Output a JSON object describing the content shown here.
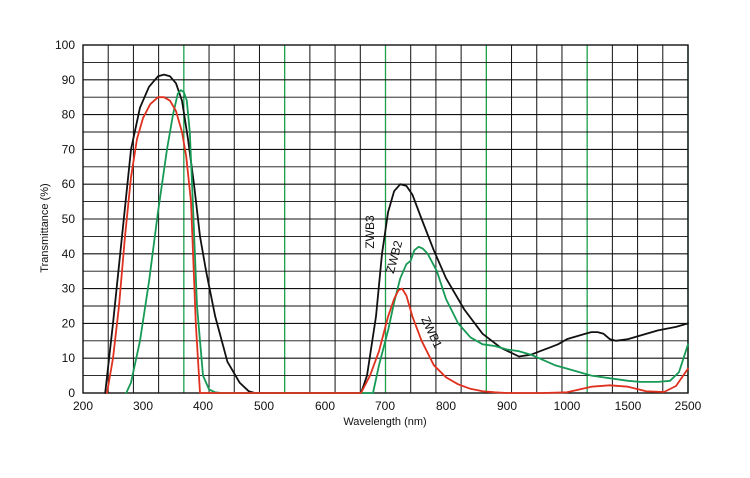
{
  "chart_data": {
    "type": "line",
    "title": "",
    "xlabel": "Wavelength (nm)",
    "ylabel": "Transmittance (%)",
    "ylim": [
      0,
      100
    ],
    "grid": true,
    "x_ticks": [
      "200",
      "300",
      "400",
      "500",
      "600",
      "700",
      "800",
      "900",
      "1000",
      "1500",
      "2500"
    ],
    "y_ticks": [
      "0",
      "10",
      "20",
      "30",
      "40",
      "50",
      "60",
      "70",
      "80",
      "90",
      "100"
    ],
    "x_axis_note": "piecewise scale: 200–900 nm linear, 900–1000 nm, 1000–1500 nm and 1500–2500 nm compressed segments",
    "colors": {
      "grid_black": "#111111",
      "grid_green": "#1aa14a",
      "ZWB3": "#111111",
      "ZWB2": "#169a55",
      "ZWB1": "#e0301e"
    },
    "series": [
      {
        "name": "ZWB3",
        "color": "#111111",
        "x": [
          237,
          250,
          265,
          280,
          295,
          310,
          325,
          335,
          345,
          355,
          365,
          375,
          385,
          395,
          405,
          420,
          440,
          460,
          475,
          485,
          490,
          660,
          670,
          685,
          695,
          705,
          715,
          725,
          735,
          745,
          760,
          780,
          800,
          830,
          860,
          890,
          920,
          940,
          955,
          970,
          985,
          1000,
          1150,
          1200,
          1250,
          1300,
          1350,
          1400,
          1500,
          1700,
          2000,
          2300,
          2500
        ],
        "y": [
          0,
          20,
          45,
          70,
          82,
          88,
          91,
          91.5,
          91,
          89,
          84,
          73,
          60,
          45,
          35,
          22,
          9,
          3,
          0.5,
          0,
          0,
          0,
          5,
          22,
          40,
          52,
          58,
          60,
          59.5,
          57,
          50,
          41,
          33,
          24,
          17,
          13,
          10.5,
          11,
          12,
          13,
          14,
          15.5,
          17,
          17.5,
          17.5,
          17,
          15.5,
          15,
          15.5,
          16.5,
          18,
          19,
          20
        ]
      },
      {
        "name": "ZWB2",
        "color": "#169a55",
        "x": [
          272,
          280,
          295,
          310,
          325,
          340,
          350,
          358,
          363,
          368,
          373,
          378,
          383,
          390,
          400,
          410,
          420,
          430,
          680,
          690,
          705,
          715,
          725,
          735,
          742,
          748,
          755,
          762,
          770,
          785,
          800,
          820,
          840,
          860,
          880,
          900,
          920,
          940,
          960,
          980,
          1000,
          1200,
          1500,
          1700,
          2000,
          2200,
          2350,
          2500
        ],
        "y": [
          0,
          3,
          15,
          32,
          52,
          70,
          80,
          86,
          87,
          86.5,
          84,
          75,
          55,
          25,
          5,
          1,
          0.2,
          0,
          0,
          8,
          18,
          26,
          33,
          37,
          38,
          41,
          42,
          41.5,
          40,
          35,
          27,
          20,
          16,
          14,
          13.5,
          12.5,
          12,
          11,
          9.5,
          8,
          7,
          5,
          3.5,
          3.2,
          3.2,
          3.5,
          6,
          14
        ]
      },
      {
        "name": "ZWB1",
        "color": "#e0301e",
        "x": [
          240,
          250,
          260,
          270,
          280,
          290,
          300,
          312,
          325,
          335,
          345,
          355,
          365,
          372,
          380,
          388,
          395,
          660,
          675,
          690,
          705,
          715,
          722,
          728,
          735,
          745,
          760,
          780,
          800,
          820,
          840,
          860,
          880,
          900,
          960,
          1000,
          1100,
          1200,
          1350,
          1500,
          1800,
          2100,
          2300,
          2500
        ],
        "y": [
          0,
          10,
          25,
          45,
          62,
          73,
          79,
          83,
          85,
          85,
          84,
          81,
          75,
          68,
          55,
          20,
          0,
          0,
          5,
          12,
          22,
          27,
          29.5,
          30,
          28,
          22,
          15,
          8,
          4.5,
          2.5,
          1.2,
          0.5,
          0.2,
          0,
          0,
          0.2,
          1,
          1.8,
          2.2,
          1.8,
          0.5,
          0.3,
          2,
          7
        ]
      }
    ],
    "annotations": [
      "ZWB3",
      "ZWB2",
      "ZWB1"
    ]
  }
}
